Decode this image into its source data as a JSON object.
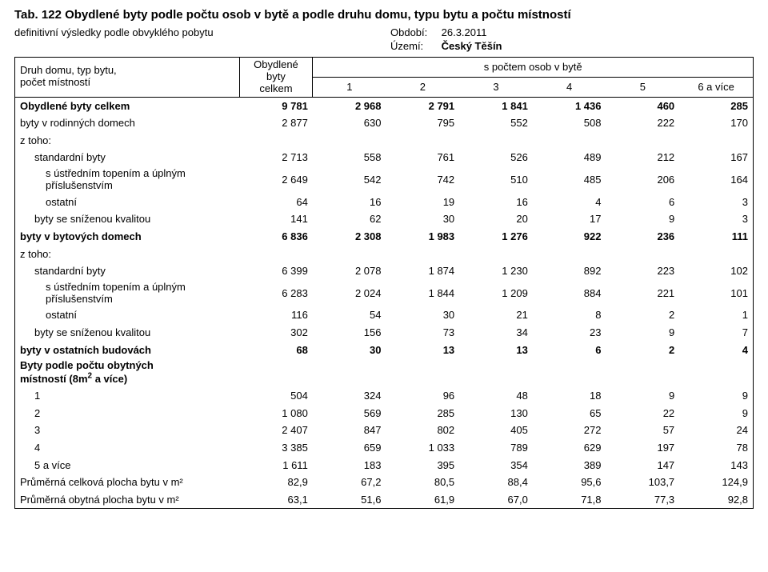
{
  "title": "Tab. 122 Obydlené byty podle počtu osob v bytě a podle druhu domu, typu bytu a počtu místností",
  "subtitle": "definitivní výsledky podle obvyklého pobytu",
  "period_label": "Období:",
  "period_value": "26.3.2011",
  "territory_label": "Území:",
  "territory_value": "Český Těšín",
  "header": {
    "stub_line1": "Druh domu, typ bytu,",
    "stub_line2": "počet místností",
    "col_total_line1": "Obydlené",
    "col_total_line2": "byty",
    "col_total_line3": "celkem",
    "spanner": "s počtem osob v bytě",
    "c1": "1",
    "c2": "2",
    "c3": "3",
    "c4": "4",
    "c5": "5",
    "c6": "6 a více"
  },
  "rows": [
    {
      "label": "Obydlené byty celkem",
      "indent": 0,
      "bold": true,
      "v": [
        "9 781",
        "2 968",
        "2 791",
        "1 841",
        "1 436",
        "460",
        "285"
      ]
    },
    {
      "label": "byty v rodinných domech",
      "indent": 0,
      "bold": false,
      "v": [
        "2 877",
        "630",
        "795",
        "552",
        "508",
        "222",
        "170"
      ]
    },
    {
      "label": "z toho:",
      "indent": 0,
      "bold": false,
      "v": [
        "",
        "",
        "",
        "",
        "",
        "",
        ""
      ]
    },
    {
      "label": "standardní byty",
      "indent": 1,
      "bold": false,
      "v": [
        "2 713",
        "558",
        "761",
        "526",
        "489",
        "212",
        "167"
      ]
    },
    {
      "label": "s ústředním topením a úplným",
      "label2": "příslušenstvím",
      "indent": 2,
      "bold": false,
      "v": [
        "2 649",
        "542",
        "742",
        "510",
        "485",
        "206",
        "164"
      ]
    },
    {
      "label": "ostatní",
      "indent": 2,
      "bold": false,
      "v": [
        "64",
        "16",
        "19",
        "16",
        "4",
        "6",
        "3"
      ]
    },
    {
      "label": "byty se sníženou kvalitou",
      "indent": 1,
      "bold": false,
      "v": [
        "141",
        "62",
        "30",
        "20",
        "17",
        "9",
        "3"
      ]
    },
    {
      "label": "byty v bytových domech",
      "indent": 0,
      "bold": true,
      "v": [
        "6 836",
        "2 308",
        "1 983",
        "1 276",
        "922",
        "236",
        "111"
      ]
    },
    {
      "label": "z toho:",
      "indent": 0,
      "bold": false,
      "v": [
        "",
        "",
        "",
        "",
        "",
        "",
        ""
      ]
    },
    {
      "label": "standardní byty",
      "indent": 1,
      "bold": false,
      "v": [
        "6 399",
        "2 078",
        "1 874",
        "1 230",
        "892",
        "223",
        "102"
      ]
    },
    {
      "label": "s ústředním topením a úplným",
      "label2": "příslušenstvím",
      "indent": 2,
      "bold": false,
      "v": [
        "6 283",
        "2 024",
        "1 844",
        "1 209",
        "884",
        "221",
        "101"
      ]
    },
    {
      "label": "ostatní",
      "indent": 2,
      "bold": false,
      "v": [
        "116",
        "54",
        "30",
        "21",
        "8",
        "2",
        "1"
      ]
    },
    {
      "label": "byty se sníženou kvalitou",
      "indent": 1,
      "bold": false,
      "v": [
        "302",
        "156",
        "73",
        "34",
        "23",
        "9",
        "7"
      ]
    },
    {
      "label": "byty v ostatních budovách",
      "indent": 0,
      "bold": true,
      "v": [
        "68",
        "30",
        "13",
        "13",
        "6",
        "2",
        "4"
      ]
    },
    {
      "label": "Byty podle počtu obytných",
      "label2": "místností (8m² a více)",
      "indent": 0,
      "bold": false,
      "boldLabel": true,
      "v": [
        "",
        "",
        "",
        "",
        "",
        "",
        ""
      ]
    },
    {
      "label": "1",
      "indent": 1,
      "bold": false,
      "v": [
        "504",
        "324",
        "96",
        "48",
        "18",
        "9",
        "9"
      ]
    },
    {
      "label": "2",
      "indent": 1,
      "bold": false,
      "v": [
        "1 080",
        "569",
        "285",
        "130",
        "65",
        "22",
        "9"
      ]
    },
    {
      "label": "3",
      "indent": 1,
      "bold": false,
      "v": [
        "2 407",
        "847",
        "802",
        "405",
        "272",
        "57",
        "24"
      ]
    },
    {
      "label": "4",
      "indent": 1,
      "bold": false,
      "v": [
        "3 385",
        "659",
        "1 033",
        "789",
        "629",
        "197",
        "78"
      ]
    },
    {
      "label": "5 a více",
      "indent": 1,
      "bold": false,
      "v": [
        "1 611",
        "183",
        "395",
        "354",
        "389",
        "147",
        "143"
      ]
    },
    {
      "label": "Průměrná celková plocha bytu v m²",
      "indent": 0,
      "bold": false,
      "v": [
        "82,9",
        "67,2",
        "80,5",
        "88,4",
        "95,6",
        "103,7",
        "124,9"
      ]
    },
    {
      "label": "Průměrná obytná plocha bytu v m²",
      "indent": 0,
      "bold": false,
      "v": [
        "63,1",
        "51,6",
        "61,9",
        "67,0",
        "71,8",
        "77,3",
        "92,8"
      ]
    }
  ]
}
